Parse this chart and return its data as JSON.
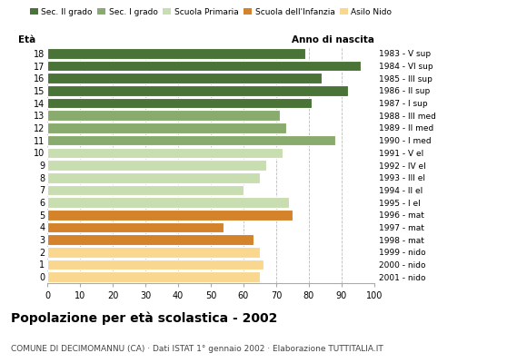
{
  "ages": [
    0,
    1,
    2,
    3,
    4,
    5,
    6,
    7,
    8,
    9,
    10,
    11,
    12,
    13,
    14,
    15,
    16,
    17,
    18
  ],
  "values": [
    65,
    66,
    65,
    63,
    54,
    75,
    74,
    60,
    65,
    67,
    72,
    88,
    73,
    71,
    81,
    92,
    84,
    96,
    79
  ],
  "categories": [
    "Asilo Nido",
    "Asilo Nido",
    "Asilo Nido",
    "Scuola dell'Infanzia",
    "Scuola dell'Infanzia",
    "Scuola dell'Infanzia",
    "Scuola Primaria",
    "Scuola Primaria",
    "Scuola Primaria",
    "Scuola Primaria",
    "Scuola Primaria",
    "Sec. I grado",
    "Sec. I grado",
    "Sec. I grado",
    "Sec. II grado",
    "Sec. II grado",
    "Sec. II grado",
    "Sec. II grado",
    "Sec. II grado"
  ],
  "right_labels": [
    "2001 - nido",
    "2000 - nido",
    "1999 - nido",
    "1998 - mat",
    "1997 - mat",
    "1996 - mat",
    "1995 - I el",
    "1994 - II el",
    "1993 - III el",
    "1992 - IV el",
    "1991 - V el",
    "1990 - I med",
    "1989 - II med",
    "1988 - III med",
    "1987 - I sup",
    "1986 - II sup",
    "1985 - III sup",
    "1984 - VI sup",
    "1983 - V sup"
  ],
  "colors": {
    "Asilo Nido": "#f9d78e",
    "Scuola dell'Infanzia": "#d4832a",
    "Scuola Primaria": "#c8ddb0",
    "Sec. I grado": "#8aab6e",
    "Sec. II grado": "#4a7337"
  },
  "legend_order": [
    "Sec. II grado",
    "Sec. I grado",
    "Scuola Primaria",
    "Scuola dell'Infanzia",
    "Asilo Nido"
  ],
  "title": "Popolazione per età scolastica - 2002",
  "subtitle": "COMUNE DI DECIMOMANNU (CA) · Dati ISTAT 1° gennaio 2002 · Elaborazione TUTTITALIA.IT",
  "xlabel_left": "Età",
  "xlabel_right": "Anno di nascita",
  "xlim": [
    0,
    100
  ],
  "background_color": "#ffffff",
  "bar_height": 0.85,
  "grid_color": "#bbbbbb"
}
